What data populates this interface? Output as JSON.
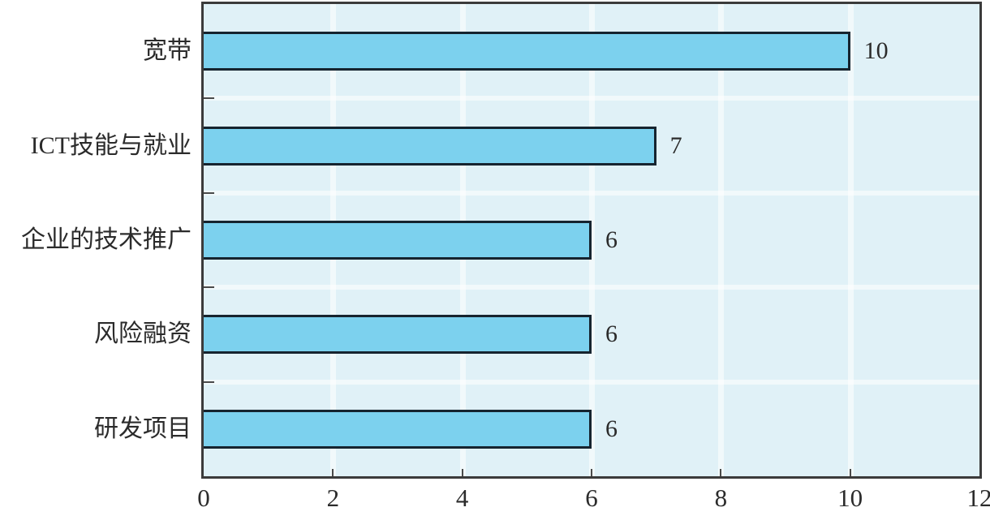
{
  "chart_data": {
    "type": "bar",
    "orientation": "horizontal",
    "title": "",
    "xlabel": "",
    "ylabel": "",
    "categories": [
      "宽带",
      "ICT技能与就业",
      "企业的技术推广",
      "风险融资",
      "研发项目"
    ],
    "values": [
      10,
      7,
      6,
      6,
      6
    ],
    "value_labels": [
      "10",
      "7",
      "6",
      "6",
      "6"
    ],
    "xlim": [
      0,
      12
    ],
    "x_ticks": [
      0,
      2,
      4,
      6,
      8,
      10,
      12
    ],
    "x_tick_labels": [
      "0",
      "2",
      "4",
      "6",
      "8",
      "10",
      "12"
    ],
    "grid": true,
    "legend": false,
    "colors": {
      "bar_fill": "#7cd1ee",
      "bar_border": "#16242f",
      "plot_background": "#e0f1f7",
      "axis_border": "#3b3b3b",
      "tick_color": "#4a4a4a",
      "gridline": "#ffffff",
      "text": "#2b2b2b",
      "page_background": "#ffffff"
    }
  }
}
